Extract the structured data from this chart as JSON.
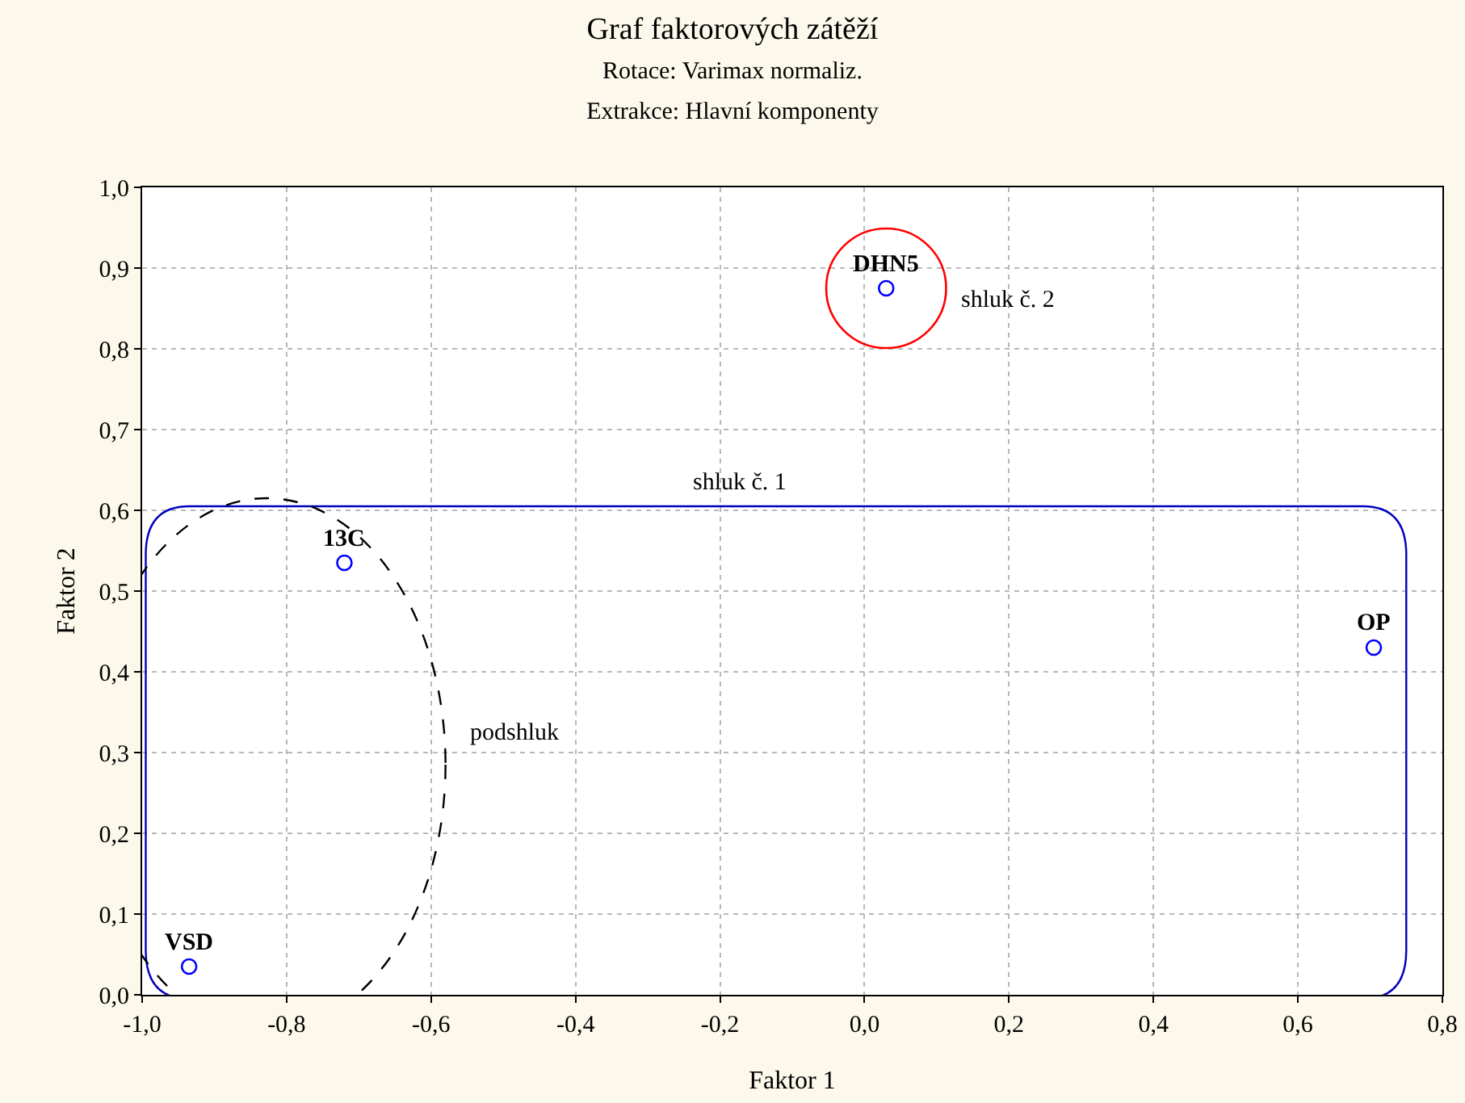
{
  "chart_data": {
    "type": "scatter",
    "title": "Graf faktorových zátěží",
    "subtitle": "Rotace: Varimax normaliz.\nExtrakce: Hlavní komponenty",
    "xlabel": "Faktor 1",
    "ylabel": "Faktor 2",
    "x": [
      -0.935,
      -0.72,
      0.03,
      0.705
    ],
    "values": [
      0.035,
      0.535,
      0.875,
      0.43
    ],
    "color": "#0000ff",
    "marker": "circle",
    "grid": true,
    "xlim": [
      -1.0,
      0.8
    ],
    "ylim": [
      0,
      1.0
    ],
    "xticks": [
      {
        "value": -1.0,
        "label": "-1,0"
      },
      {
        "value": -0.8,
        "label": "-0,8"
      },
      {
        "value": -0.6,
        "label": "-0,6"
      },
      {
        "value": -0.4,
        "label": "-0,4"
      },
      {
        "value": -0.2,
        "label": "-0,2"
      },
      {
        "value": 0,
        "label": "0,0"
      },
      {
        "value": 0.2,
        "label": "0,2"
      },
      {
        "value": 0.4,
        "label": "0,4"
      },
      {
        "value": 0.6,
        "label": "0,6"
      },
      {
        "value": 0.8,
        "label": "0,8"
      }
    ],
    "yticks": [
      {
        "value": 0,
        "label": "0,0"
      },
      {
        "value": 0.1,
        "label": "0,1"
      },
      {
        "value": 0.2,
        "label": "0,2"
      },
      {
        "value": 0.3,
        "label": "0,3"
      },
      {
        "value": 0.4,
        "label": "0,4"
      },
      {
        "value": 0.5,
        "label": "0,5"
      },
      {
        "value": 0.6,
        "label": "0,6"
      },
      {
        "value": 0.7,
        "label": "0,7"
      },
      {
        "value": 0.8,
        "label": "0,8"
      },
      {
        "value": 0.9,
        "label": "0,9"
      },
      {
        "value": 1.0,
        "label": "1,0"
      }
    ],
    "annotations": [
      {
        "text": "VSD",
        "x": -0.935,
        "y": 0.035
      },
      {
        "text": "13C",
        "x": -0.72,
        "y": 0.535
      },
      {
        "text": "DHN5",
        "x": 0.03,
        "y": 0.875
      },
      {
        "text": "OP",
        "x": 0.705,
        "y": 0.43
      },
      "shluk č. 1",
      "shluk č. 2",
      "podshluk"
    ]
  }
}
